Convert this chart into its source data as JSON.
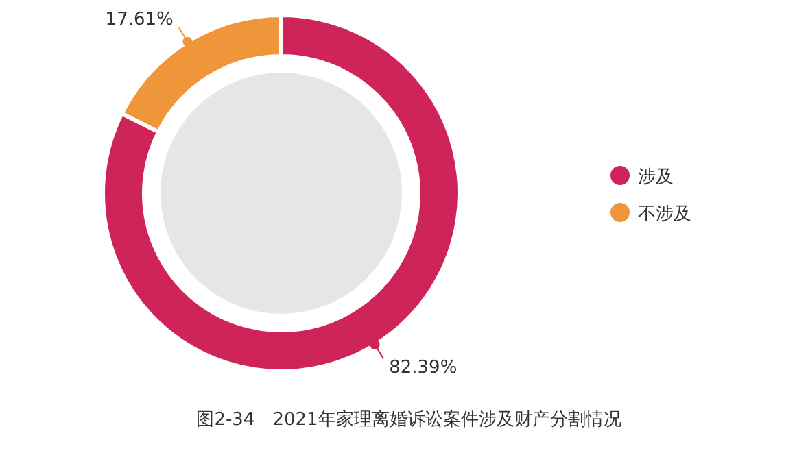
{
  "chart_data": {
    "type": "donut",
    "title": "图2-34　2021年家理离婚诉讼案件涉及财产分割情况",
    "categories": [
      "涉及",
      "不涉及"
    ],
    "values": [
      82.39,
      17.61
    ],
    "colors": [
      "#cf2459",
      "#f0963a"
    ],
    "value_labels": [
      "82.39%",
      "17.61%"
    ],
    "legend": "right"
  }
}
